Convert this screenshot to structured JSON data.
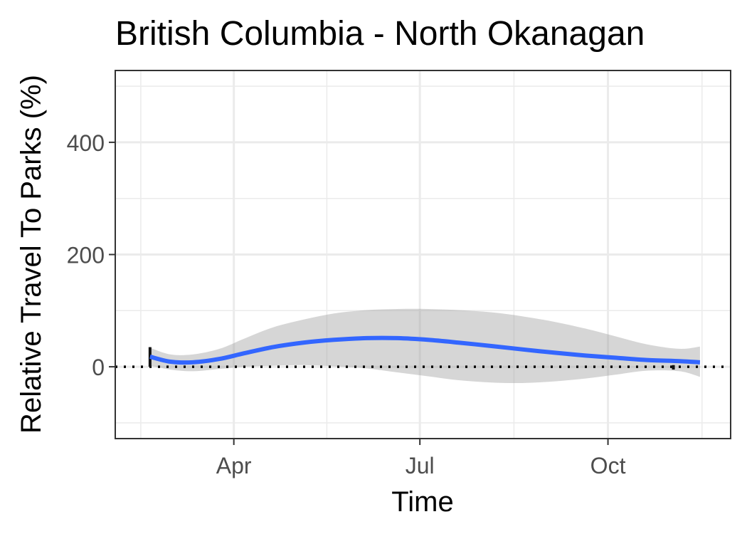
{
  "chart_data": {
    "type": "line",
    "title": "British Columbia - North Okanagan",
    "xlabel": "Time",
    "ylabel": "Relative Travel To Parks (%)",
    "x_ticks": [
      {
        "label": "Apr",
        "date": "2020-04-01"
      },
      {
        "label": "Jul",
        "date": "2020-07-01"
      },
      {
        "label": "Oct",
        "date": "2020-10-01"
      }
    ],
    "y_ticks": [
      0,
      200,
      400
    ],
    "xlim": [
      "2020-02-03",
      "2020-11-30"
    ],
    "ylim": [
      -128,
      528
    ],
    "grid": true,
    "reference_line": {
      "y": 0,
      "style": "dotted"
    },
    "series": [
      {
        "color": "#3366ff",
        "points": [
          {
            "x": "2020-02-20",
            "y": 18
          },
          {
            "x": "2020-03-01",
            "y": 9
          },
          {
            "x": "2020-03-12",
            "y": 8
          },
          {
            "x": "2020-03-25",
            "y": 14
          },
          {
            "x": "2020-04-06",
            "y": 24
          },
          {
            "x": "2020-04-20",
            "y": 35
          },
          {
            "x": "2020-05-05",
            "y": 43
          },
          {
            "x": "2020-05-20",
            "y": 48
          },
          {
            "x": "2020-06-05",
            "y": 51
          },
          {
            "x": "2020-06-20",
            "y": 51
          },
          {
            "x": "2020-07-05",
            "y": 48
          },
          {
            "x": "2020-07-20",
            "y": 43
          },
          {
            "x": "2020-08-05",
            "y": 37
          },
          {
            "x": "2020-08-20",
            "y": 31
          },
          {
            "x": "2020-09-05",
            "y": 25
          },
          {
            "x": "2020-09-20",
            "y": 20
          },
          {
            "x": "2020-10-05",
            "y": 16
          },
          {
            "x": "2020-10-20",
            "y": 12
          },
          {
            "x": "2020-11-05",
            "y": 10
          },
          {
            "x": "2020-11-15",
            "y": 8
          }
        ],
        "ci_band": [
          {
            "x": "2020-02-20",
            "lo": 2,
            "hi": 34
          },
          {
            "x": "2020-03-01",
            "lo": -5,
            "hi": 22
          },
          {
            "x": "2020-03-12",
            "lo": -8,
            "hi": 22
          },
          {
            "x": "2020-03-25",
            "lo": -4,
            "hi": 32
          },
          {
            "x": "2020-04-06",
            "lo": 0,
            "hi": 50
          },
          {
            "x": "2020-04-20",
            "lo": 2,
            "hi": 70
          },
          {
            "x": "2020-05-05",
            "lo": 3,
            "hi": 84
          },
          {
            "x": "2020-05-20",
            "lo": 1,
            "hi": 95
          },
          {
            "x": "2020-06-05",
            "lo": -3,
            "hi": 101
          },
          {
            "x": "2020-06-20",
            "lo": -10,
            "hi": 103
          },
          {
            "x": "2020-07-05",
            "lo": -17,
            "hi": 103
          },
          {
            "x": "2020-07-20",
            "lo": -24,
            "hi": 101
          },
          {
            "x": "2020-08-05",
            "lo": -28,
            "hi": 97
          },
          {
            "x": "2020-08-20",
            "lo": -29,
            "hi": 90
          },
          {
            "x": "2020-09-05",
            "lo": -26,
            "hi": 80
          },
          {
            "x": "2020-09-20",
            "lo": -21,
            "hi": 68
          },
          {
            "x": "2020-10-05",
            "lo": -14,
            "hi": 54
          },
          {
            "x": "2020-10-20",
            "lo": -7,
            "hi": 40
          },
          {
            "x": "2020-11-05",
            "lo": -8,
            "hi": 32
          },
          {
            "x": "2020-11-15",
            "lo": -18,
            "hi": 36
          }
        ]
      }
    ],
    "raw_marks": [
      {
        "x": "2020-02-20",
        "y_from": 0,
        "y_to": 35
      },
      {
        "x": "2020-11-02",
        "y_from": -5,
        "y_to": 3
      }
    ]
  }
}
